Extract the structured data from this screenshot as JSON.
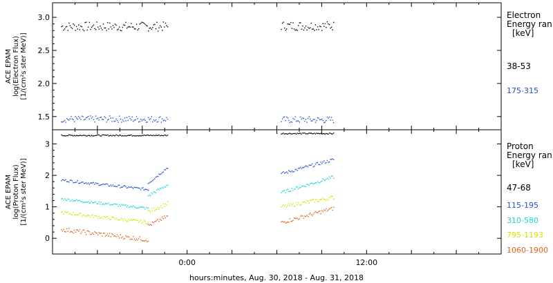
{
  "colors": {
    "black": "#000000",
    "blue": "#1f4fd0",
    "cyan": "#18d6d6",
    "yellow": "#d8e000",
    "orange": "#e0601a"
  },
  "xaxis": {
    "label": "hours:minutes, Aug. 30, 2018 - Aug. 31, 2018",
    "ticks": [
      {
        "value": 0,
        "label": "0:00"
      },
      {
        "value": 12,
        "label": "12:00"
      }
    ],
    "range": [
      -9,
      21
    ]
  },
  "chart_data": [
    {
      "type": "scatter",
      "ylabel": [
        "ACE EPAM",
        "log(Electron Flux)",
        "[1/(cm²s ster MeV)]"
      ],
      "ylim": [
        1.3,
        3.22
      ],
      "yticks": [
        1.5,
        2.0,
        2.5,
        3.0
      ],
      "ytick_labels": [
        "1.5",
        "2.0",
        "2.5",
        "3.0"
      ],
      "legend": {
        "title_lines": [
          "Electron",
          "Energy ran",
          "[keV]"
        ],
        "entries": [
          {
            "label": "38-53",
            "color": "#000000"
          },
          {
            "label": "175-315",
            "color": "#1f4fd0"
          }
        ]
      },
      "series": [
        {
          "name": "38-53",
          "color": "#000000",
          "segments": [
            {
              "start": -8.4,
              "end": -1.3,
              "base": 2.86,
              "spread": 0.07
            },
            {
              "start": 6.3,
              "end": 9.8,
              "base": 2.87,
              "spread": 0.07
            }
          ]
        },
        {
          "name": "175-315",
          "color": "#1f4fd0",
          "segments": [
            {
              "start": -8.4,
              "end": -1.3,
              "base": 1.46,
              "spread": 0.05
            },
            {
              "start": 6.3,
              "end": 9.8,
              "base": 1.45,
              "spread": 0.05
            }
          ]
        }
      ]
    },
    {
      "type": "scatter",
      "ylabel": [
        "ACE EPAM",
        "log(Proton Flux)",
        "[1/(cm²s ster MeV)]"
      ],
      "ylim": [
        -0.5,
        3.45
      ],
      "yticks": [
        0,
        1,
        2,
        3
      ],
      "ytick_labels": [
        "0",
        "1",
        "2",
        "3"
      ],
      "legend": {
        "title_lines": [
          "Proton",
          "Energy ran",
          "[keV]"
        ],
        "entries": [
          {
            "label": "47-68",
            "color": "#000000"
          },
          {
            "label": "115-195",
            "color": "#1f4fd0"
          },
          {
            "label": "310-580",
            "color": "#18d6d6"
          },
          {
            "label": "795-1193",
            "color": "#d8e000"
          },
          {
            "label": "1060-1900",
            "color": "#e0601a"
          }
        ]
      },
      "series": [
        {
          "name": "47-68",
          "color": "#000000",
          "segments": [
            {
              "start": -8.4,
              "end": -1.3,
              "base": 3.27,
              "spread": 0.02
            },
            {
              "start": 6.3,
              "end": 9.8,
              "base": 3.33,
              "spread": 0.02
            }
          ]
        },
        {
          "name": "115-195",
          "color": "#1f4fd0",
          "segments": [
            {
              "start": -8.4,
              "end": -2.6,
              "from": 1.85,
              "to": 1.55,
              "spread": 0.04
            },
            {
              "start": -2.6,
              "end": -1.3,
              "from": 1.75,
              "to": 2.25,
              "spread": 0.04
            },
            {
              "start": 6.3,
              "end": 9.8,
              "from": 2.05,
              "to": 2.5,
              "spread": 0.05
            }
          ]
        },
        {
          "name": "310-580",
          "color": "#18d6d6",
          "segments": [
            {
              "start": -8.4,
              "end": -2.6,
              "from": 1.25,
              "to": 0.95,
              "spread": 0.04
            },
            {
              "start": -2.6,
              "end": -1.3,
              "from": 1.35,
              "to": 1.7,
              "spread": 0.05
            },
            {
              "start": 6.3,
              "end": 9.8,
              "from": 1.45,
              "to": 1.95,
              "spread": 0.05
            }
          ]
        },
        {
          "name": "795-1193",
          "color": "#d8e000",
          "segments": [
            {
              "start": -8.4,
              "end": -2.6,
              "from": 0.82,
              "to": 0.5,
              "spread": 0.05
            },
            {
              "start": -2.6,
              "end": -1.3,
              "from": 0.85,
              "to": 1.1,
              "spread": 0.06
            },
            {
              "start": 6.3,
              "end": 9.8,
              "from": 1.0,
              "to": 1.3,
              "spread": 0.06
            }
          ]
        },
        {
          "name": "1060-1900",
          "color": "#e0601a",
          "segments": [
            {
              "start": -8.4,
              "end": -2.6,
              "from": 0.28,
              "to": -0.05,
              "spread": 0.07
            },
            {
              "start": -2.6,
              "end": -1.3,
              "from": 0.4,
              "to": 0.7,
              "spread": 0.06
            },
            {
              "start": 6.3,
              "end": 9.8,
              "from": 0.5,
              "to": 0.95,
              "spread": 0.06
            }
          ]
        }
      ]
    }
  ]
}
